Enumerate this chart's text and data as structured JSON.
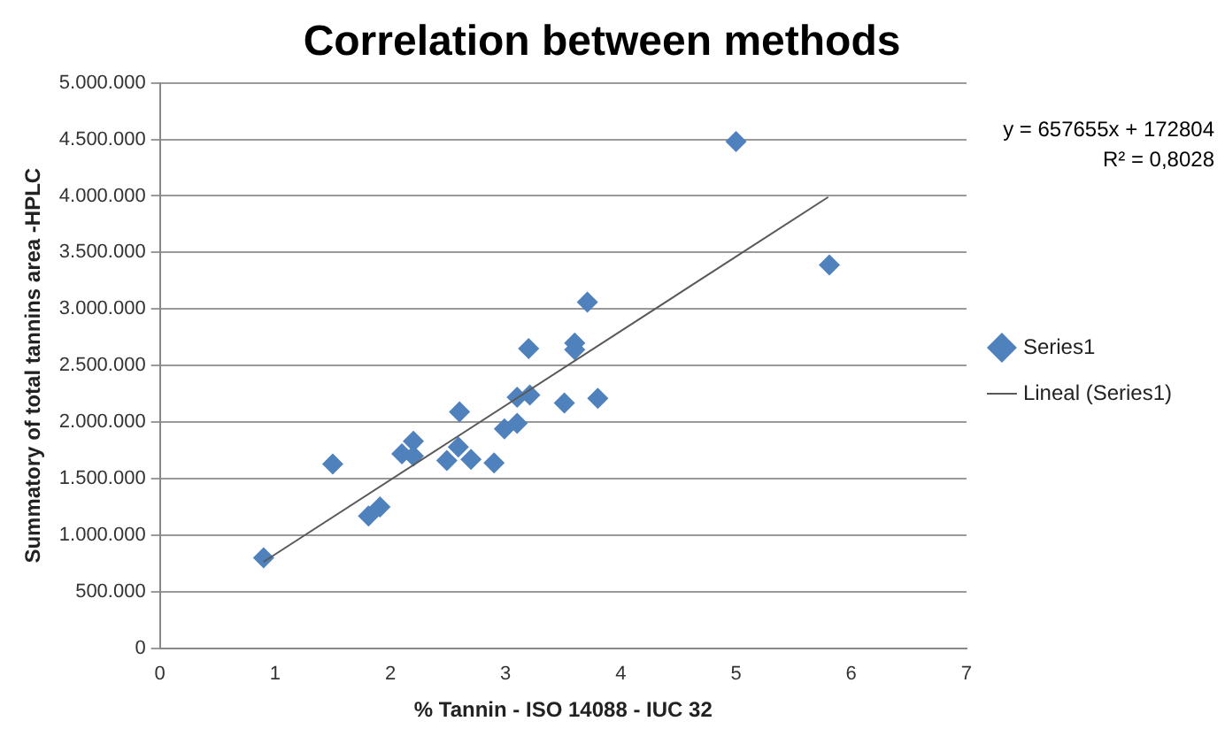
{
  "chart_data": {
    "type": "scatter",
    "title": "Correlation between methods",
    "xlabel": "% Tannin - ISO 14088 - IUC 32",
    "ylabel": "Summatory of total tannins area -HPLC",
    "x": [
      0.9,
      1.5,
      1.81,
      1.91,
      2.1,
      2.2,
      2.2,
      2.49,
      2.6,
      2.59,
      2.7,
      2.9,
      2.99,
      3.1,
      3.1,
      3.21,
      3.2,
      3.51,
      3.6,
      3.6,
      3.71,
      3.8,
      5.0,
      5.81
    ],
    "series": [
      {
        "name": "Series1",
        "color": "#4f81bd",
        "marker": "diamond",
        "values": [
          800000,
          1630000,
          1170000,
          1250000,
          1720000,
          1830000,
          1700000,
          1660000,
          2090000,
          1780000,
          1670000,
          1640000,
          1940000,
          1990000,
          2220000,
          2240000,
          2650000,
          2170000,
          2700000,
          2640000,
          3060000,
          2210000,
          4480000,
          3390000
        ]
      },
      {
        "name": "Lineal (Series1)",
        "type": "line",
        "color": "#595959",
        "marker": "none",
        "x": [
          0.9,
          5.8
        ],
        "values": [
          765000,
          3990000
        ]
      }
    ],
    "xlim": [
      0,
      7
    ],
    "xticks": [
      0,
      1,
      2,
      3,
      4,
      5,
      6,
      7
    ],
    "ylim": [
      0,
      5000000
    ],
    "yticks": [
      0,
      {
        "value": 500000,
        "label": "500.000"
      },
      {
        "value": 1000000,
        "label": "1.000.000"
      },
      {
        "value": 1500000,
        "label": "1.500.000"
      },
      {
        "value": 2000000,
        "label": "2.000.000"
      },
      {
        "value": 2500000,
        "label": "2.500.000"
      },
      {
        "value": 3000000,
        "label": "3.000.000"
      },
      {
        "value": 3500000,
        "label": "3.500.000"
      },
      {
        "value": 4000000,
        "label": "4.000.000"
      },
      {
        "value": 4500000,
        "label": "4.500.000"
      },
      {
        "value": 5000000,
        "label": "5.000.000"
      }
    ],
    "grid": "y",
    "legend": "right",
    "annotations": [
      "y = 657655x + 172804",
      "R² = 0,8028"
    ]
  }
}
